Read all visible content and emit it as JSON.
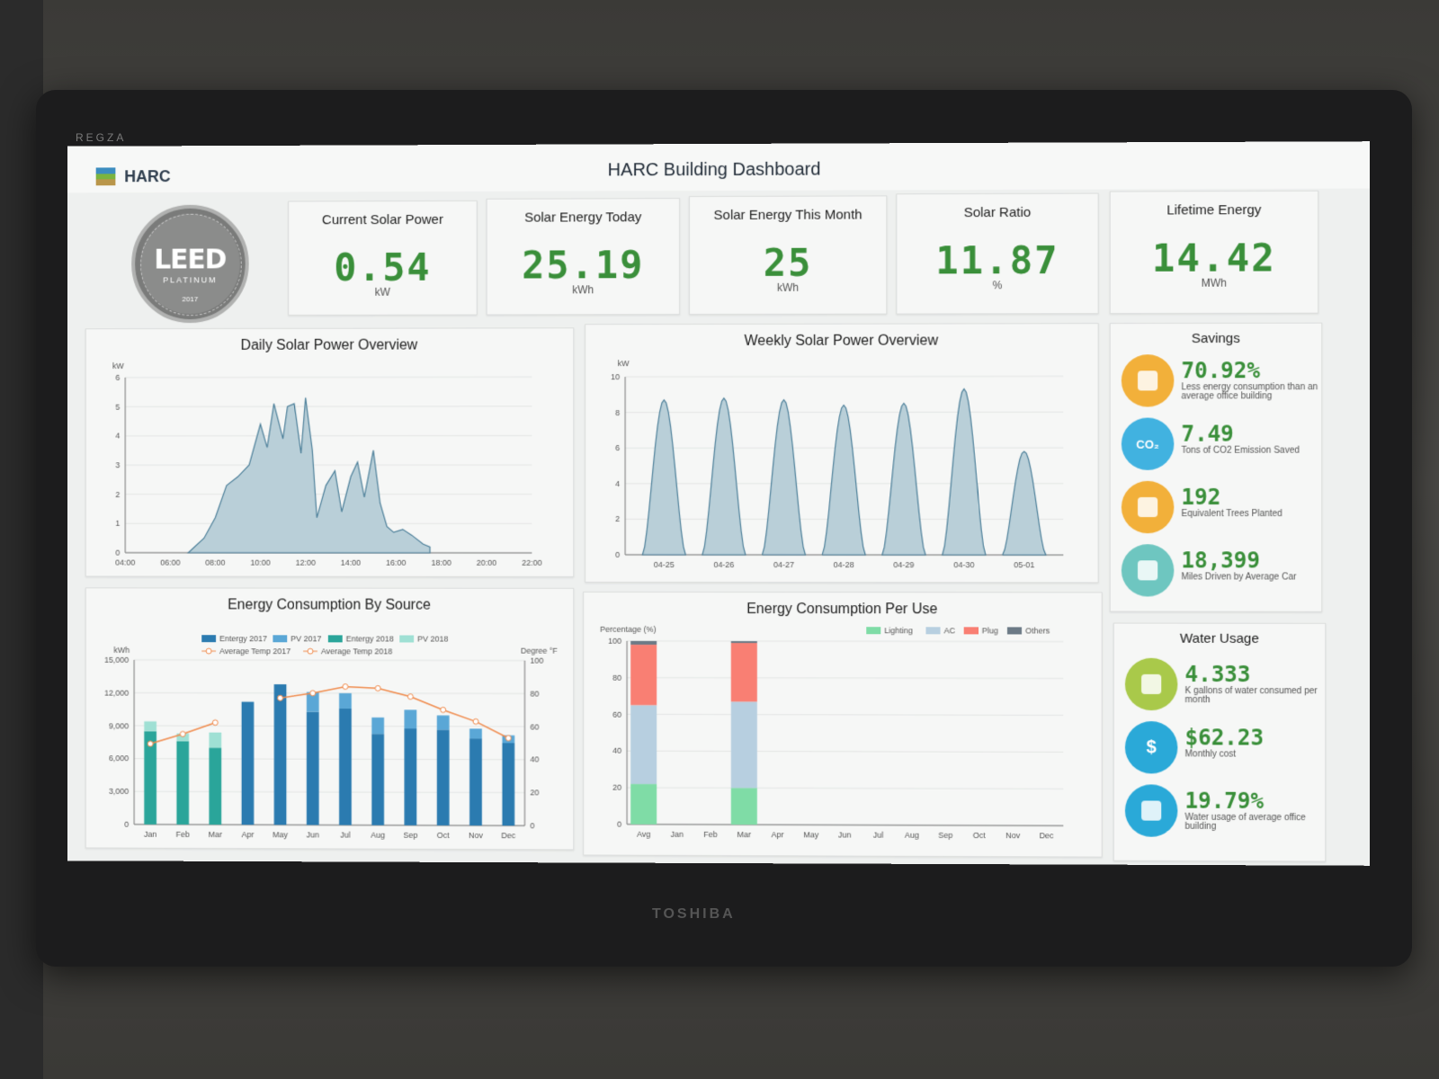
{
  "brand": {
    "top": "REGZA",
    "bottom": "TOSHIBA"
  },
  "header": {
    "logo_text": "HARC",
    "title": "HARC Building Dashboard"
  },
  "leed": {
    "main": "LEED",
    "level": "PLATINUM",
    "year": "2017"
  },
  "kpis": [
    {
      "title": "Current Solar Power",
      "value": "0.54",
      "unit": "kW"
    },
    {
      "title": "Solar Energy Today",
      "value": "25.19",
      "unit": "kWh"
    },
    {
      "title": "Solar Energy This Month",
      "value": "25",
      "unit": "kWh"
    },
    {
      "title": "Solar Ratio",
      "value": "11.87",
      "unit": "%"
    },
    {
      "title": "Lifetime Energy",
      "value": "14.42",
      "unit": "MWh"
    }
  ],
  "savings": {
    "title": "Savings",
    "items": [
      {
        "value": "70.92%",
        "desc": "Less energy consumption than an average office building",
        "icon": "building-icon",
        "color": "#f2b03a"
      },
      {
        "value": "7.49",
        "desc": "Tons of CO2 Emission Saved",
        "icon": "co2-cloud-icon",
        "color": "#41b2e0",
        "glyph": "CO₂"
      },
      {
        "value": "192",
        "desc": "Equivalent Trees Planted",
        "icon": "tree-icon",
        "color": "#f2b03a"
      },
      {
        "value": "18,399",
        "desc": "Miles Driven by Average Car",
        "icon": "car-icon",
        "color": "#6ec6c0"
      }
    ]
  },
  "water": {
    "title": "Water Usage",
    "items": [
      {
        "value": "4.333",
        "desc": "K gallons of water consumed per month",
        "icon": "faucet-icon",
        "color": "#a9c94a"
      },
      {
        "value": "$62.23",
        "desc": "Monthly cost",
        "icon": "dollar-icon",
        "color": "#2aa9d8",
        "glyph": "$"
      },
      {
        "value": "19.79%",
        "desc": "Water usage of average office building",
        "icon": "water-hands-icon",
        "color": "#2aa9d8"
      }
    ]
  },
  "chart_data": [
    {
      "id": "daily",
      "type": "area",
      "title": "Daily Solar Power Overview",
      "ylabel": "kW",
      "ylim": [
        0,
        6
      ],
      "yticks": [
        0,
        1,
        2,
        3,
        4,
        5,
        6
      ],
      "xticks": [
        "04:00",
        "06:00",
        "08:00",
        "10:00",
        "12:00",
        "14:00",
        "16:00",
        "18:00",
        "20:00",
        "22:00"
      ],
      "xlim": [
        4,
        22
      ],
      "x": [
        6.8,
        7.5,
        8,
        8.5,
        9,
        9.5,
        10,
        10.3,
        10.6,
        11,
        11.2,
        11.5,
        11.8,
        12,
        12.3,
        12.5,
        12.9,
        13.3,
        13.6,
        14,
        14.3,
        14.6,
        15,
        15.3,
        15.6,
        15.9,
        16.3,
        16.7,
        17.2,
        17.5
      ],
      "y": [
        0,
        0.5,
        1.2,
        2.3,
        2.6,
        3.0,
        4.4,
        3.6,
        5.1,
        3.9,
        5.0,
        5.1,
        3.4,
        5.3,
        3.5,
        1.2,
        2.3,
        2.8,
        1.4,
        2.6,
        3.1,
        1.9,
        3.5,
        1.7,
        0.9,
        0.7,
        0.8,
        0.6,
        0.3,
        0.2
      ]
    },
    {
      "id": "weekly",
      "type": "area",
      "title": "Weekly Solar Power Overview",
      "ylabel": "kW",
      "ylim": [
        0,
        10
      ],
      "yticks": [
        0,
        2,
        4,
        6,
        8,
        10
      ],
      "categories": [
        "04-25",
        "04-26",
        "04-27",
        "04-28",
        "04-29",
        "04-30",
        "05-01"
      ],
      "peaks": [
        8.7,
        8.8,
        8.7,
        8.4,
        8.5,
        9.3,
        5.8
      ]
    },
    {
      "id": "bysource",
      "type": "bar",
      "title": "Energy Consumption By Source",
      "ylabel": "kWh",
      "y2label": "Degree °F",
      "ylim": [
        0,
        15000
      ],
      "yticks": [
        "0",
        "3,000",
        "6,000",
        "9,000",
        "12,000",
        "15,000"
      ],
      "y2lim": [
        0,
        100
      ],
      "y2ticks": [
        0,
        20,
        40,
        60,
        80,
        100
      ],
      "categories": [
        "Jan",
        "Feb",
        "Mar",
        "Apr",
        "May",
        "Jun",
        "Jul",
        "Aug",
        "Sep",
        "Oct",
        "Nov",
        "Dec"
      ],
      "series": [
        {
          "name": "Entergy 2017",
          "color": "#2b7bb0",
          "values": [
            0,
            0,
            0,
            11200,
            12800,
            10300,
            10600,
            8300,
            8800,
            8700,
            7900,
            7500
          ]
        },
        {
          "name": "PV 2017",
          "color": "#5aa7d6",
          "values": [
            0,
            0,
            0,
            0,
            0,
            1800,
            1400,
            1500,
            1700,
            1300,
            900,
            700
          ]
        },
        {
          "name": "Entergy 2018",
          "color": "#2aa59a",
          "values": [
            8500,
            7600,
            7000,
            0,
            0,
            0,
            0,
            0,
            0,
            0,
            0,
            0
          ]
        },
        {
          "name": "PV 2018",
          "color": "#9fe0d4",
          "values": [
            900,
            700,
            1400,
            0,
            0,
            0,
            0,
            0,
            0,
            0,
            0,
            0
          ]
        }
      ],
      "lines": [
        {
          "name": "Average Temp 2017",
          "color": "#f08a4b",
          "values": [
            null,
            null,
            null,
            null,
            77,
            80,
            84,
            83,
            78,
            70,
            63,
            53
          ]
        },
        {
          "name": "Average Temp 2018",
          "color": "#f08a4b",
          "values": [
            49,
            55,
            62,
            null,
            null,
            null,
            null,
            null,
            null,
            null,
            null,
            null
          ]
        }
      ]
    },
    {
      "id": "peruse",
      "type": "bar",
      "title": "Energy Consumption Per Use",
      "ylabel": "Percentage (%)",
      "ylim": [
        0,
        100
      ],
      "yticks": [
        0,
        20,
        40,
        60,
        80,
        100
      ],
      "categories": [
        "Avg",
        "Jan",
        "Feb",
        "Mar",
        "Apr",
        "May",
        "Jun",
        "Jul",
        "Aug",
        "Sep",
        "Oct",
        "Nov",
        "Dec"
      ],
      "series": [
        {
          "name": "Lighting",
          "color": "#7fdca6",
          "values": [
            22,
            0,
            0,
            20,
            0,
            0,
            0,
            0,
            0,
            0,
            0,
            0,
            0
          ]
        },
        {
          "name": "AC",
          "color": "#b7cfe0",
          "values": [
            43,
            0,
            0,
            47,
            0,
            0,
            0,
            0,
            0,
            0,
            0,
            0,
            0
          ]
        },
        {
          "name": "Plug",
          "color": "#f97f73",
          "values": [
            33,
            0,
            0,
            32,
            0,
            0,
            0,
            0,
            0,
            0,
            0,
            0,
            0
          ]
        },
        {
          "name": "Others",
          "color": "#6c7a86",
          "values": [
            2,
            0,
            0,
            1,
            0,
            0,
            0,
            0,
            0,
            0,
            0,
            0,
            0
          ]
        }
      ]
    }
  ]
}
